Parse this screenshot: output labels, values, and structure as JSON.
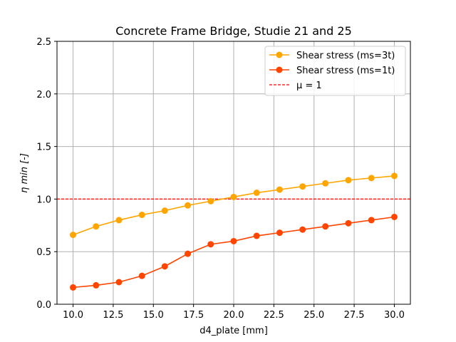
{
  "chart_data": {
    "type": "line",
    "title": "Concrete Frame Bridge, Studie 21 and 25",
    "xlabel": "d4_plate [mm]",
    "ylabel": "η min [-]",
    "xlim": [
      9.0,
      31.0
    ],
    "ylim": [
      0.0,
      2.5
    ],
    "xticks": [
      "10.0",
      "12.5",
      "15.0",
      "17.5",
      "20.0",
      "22.5",
      "25.0",
      "27.5",
      "30.0"
    ],
    "yticks": [
      "0.0",
      "0.5",
      "1.0",
      "1.5",
      "2.0",
      "2.5"
    ],
    "grid": true,
    "legend_position": "top-right",
    "x": [
      10.0,
      11.43,
      12.86,
      14.29,
      15.71,
      17.14,
      18.57,
      20.0,
      21.43,
      22.86,
      24.29,
      25.71,
      27.14,
      28.57,
      30.0
    ],
    "series": [
      {
        "name": "Shear stress (ms=3t)",
        "color": "#ffa500",
        "marker": "circle",
        "values": [
          0.66,
          0.74,
          0.8,
          0.85,
          0.89,
          0.94,
          0.98,
          1.02,
          1.06,
          1.09,
          1.12,
          1.15,
          1.18,
          1.2,
          1.22
        ]
      },
      {
        "name": "Shear stress (ms=1t)",
        "color": "#ff4500",
        "marker": "circle",
        "values": [
          0.16,
          0.18,
          0.21,
          0.27,
          0.36,
          0.48,
          0.57,
          0.6,
          0.65,
          0.68,
          0.71,
          0.74,
          0.77,
          0.8,
          0.83
        ]
      }
    ],
    "reference_line": {
      "label": "μ = 1",
      "y": 1.0,
      "color": "#ff0000",
      "style": "dashed"
    }
  }
}
